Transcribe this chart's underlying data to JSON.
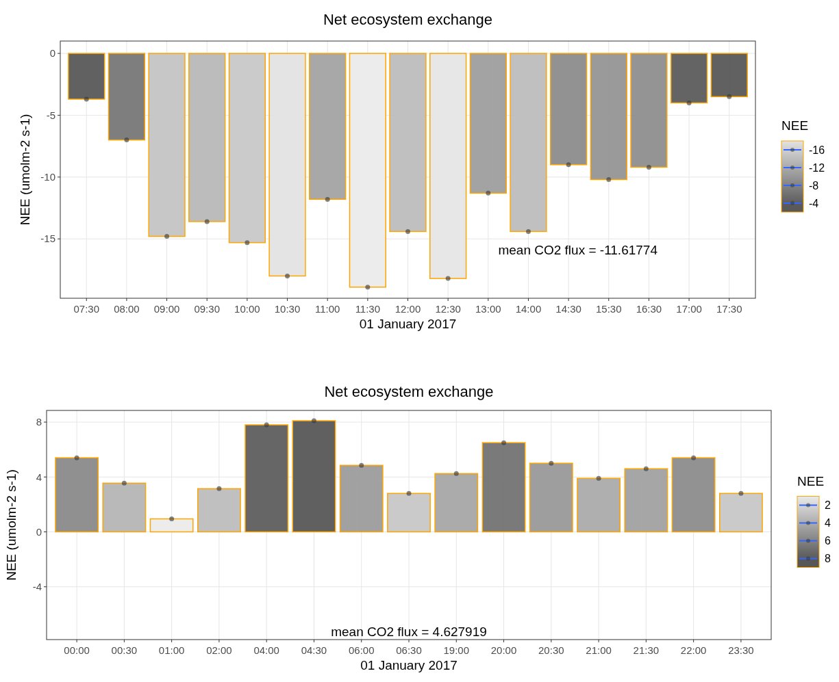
{
  "chart_data": [
    {
      "type": "bar",
      "title": "Net ecosystem exchange",
      "xlabel": "01 January 2017",
      "ylabel": "NEE (umolm-2 s-1)",
      "clabel": "NEE",
      "categories": [
        "07:30",
        "08:00",
        "09:00",
        "09:30",
        "10:00",
        "10:30",
        "11:00",
        "11:30",
        "12:00",
        "12:30",
        "13:00",
        "14:00",
        "14:30",
        "15:30",
        "16:30",
        "17:00",
        "17:30"
      ],
      "series": [
        {
          "colors": [
            "#595959",
            "#777777",
            "#c4c4c4",
            "#b8b8b8",
            "#c8c8c8",
            "#e3e3e3",
            "#a3a3a3",
            "#ebebeb",
            "#bdbdbd",
            "#e6e6e6",
            "#9e9e9e",
            "#bdbdbd",
            "#8c8c8c",
            "#959595",
            "#8e8e8e",
            "#5c5c5c",
            "#595959"
          ],
          "values": [
            -3.7,
            -7.0,
            -14.8,
            -13.6,
            -15.3,
            -18.0,
            -11.8,
            -18.9,
            -14.4,
            -18.2,
            -11.3,
            -14.4,
            -9.0,
            -10.2,
            -9.2,
            -4.0,
            -3.5
          ]
        },
        {
          "type": "scatter",
          "color": "#333333",
          "x": [
            "07:30",
            "08:00",
            "09:00",
            "09:30",
            "10:00",
            "10:30",
            "11:00",
            "11:30",
            "12:00",
            "12:30",
            "13:00",
            "14:00",
            "14:30",
            "15:30",
            "16:30",
            "17:00",
            "17:30"
          ],
          "values": [
            -3.7,
            -7.0,
            -14.8,
            -13.6,
            -15.3,
            -18.0,
            -11.8,
            -18.9,
            -14.4,
            -18.2,
            -11.3,
            -14.4,
            -9.0,
            -10.2,
            -9.2,
            -4.0,
            -3.5
          ]
        }
      ],
      "ylim": [
        -19.8,
        1
      ],
      "yticks": [
        0,
        -5,
        -10,
        -15
      ],
      "clim": [
        -18,
        -2
      ],
      "cticks": [
        -16,
        -12,
        -8,
        -4
      ],
      "grid": true,
      "annotations": [
        "mean CO2 flux = -11.61774"
      ]
    },
    {
      "type": "bar",
      "title": "Net ecosystem exchange",
      "xlabel": "01 January 2017",
      "ylabel": "NEE (umolm-2 s-1)",
      "clabel": "NEE",
      "categories": [
        "00:00",
        "00:30",
        "01:00",
        "02:00",
        "04:00",
        "04:30",
        "06:00",
        "06:30",
        "19:00",
        "20:00",
        "20:30",
        "21:00",
        "21:30",
        "22:00",
        "23:30"
      ],
      "series": [
        {
          "colors": [
            "#8a8a8a",
            "#b5b5b5",
            "#ebebeb",
            "#bdbdbd",
            "#5e5e5e",
            "#575757",
            "#9c9c9c",
            "#c7c7c7",
            "#a6a6a6",
            "#737373",
            "#999999",
            "#ababab",
            "#a1a1a1",
            "#8c8c8c",
            "#c7c7c7"
          ],
          "values": [
            5.4,
            3.55,
            0.95,
            3.15,
            7.8,
            8.1,
            4.85,
            2.8,
            4.25,
            6.5,
            5.0,
            3.9,
            4.6,
            5.4,
            2.8
          ]
        },
        {
          "type": "scatter",
          "color": "#333333",
          "x": [
            "00:00",
            "00:30",
            "01:00",
            "02:00",
            "04:00",
            "04:30",
            "06:00",
            "06:30",
            "19:00",
            "20:00",
            "20:30",
            "21:00",
            "21:30",
            "22:00",
            "23:30"
          ],
          "values": [
            5.4,
            3.55,
            0.95,
            3.15,
            7.8,
            8.1,
            4.85,
            2.8,
            4.25,
            6.5,
            5.0,
            3.9,
            4.6,
            5.4,
            2.8
          ]
        }
      ],
      "ylim": [
        -7.85,
        8.85
      ],
      "yticks": [
        8,
        4,
        0,
        -4
      ],
      "clim": [
        1,
        9
      ],
      "cticks": [
        2,
        4,
        6,
        8
      ],
      "grid": true,
      "annotations": [
        "mean CO2 flux =  4.627919"
      ]
    }
  ]
}
